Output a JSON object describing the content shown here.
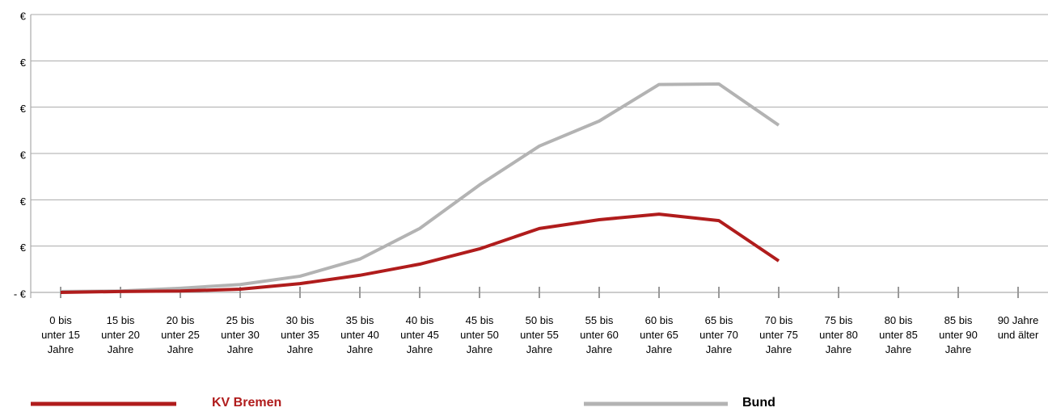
{
  "chart_data": {
    "type": "line",
    "categories": [
      "0 bis unter 15 Jahre",
      "15 bis unter 20 Jahre",
      "20 bis unter 25 Jahre",
      "25 bis unter 30 Jahre",
      "30 bis unter 35 Jahre",
      "35 bis unter 40 Jahre",
      "40 bis unter 45 Jahre",
      "45 bis unter 50 Jahre",
      "50 bis unter 55 Jahre",
      "55 bis unter 60 Jahre",
      "60 bis unter 65 Jahre",
      "65 bis unter 70 Jahre",
      "70 bis unter 75 Jahre",
      "75 bis unter 80 Jahre",
      "80 bis unter 85 Jahre",
      "85 bis unter 90 Jahre",
      "90 Jahre und älter"
    ],
    "series": [
      {
        "name": "KV Bremen",
        "color": "#b01c1c",
        "values": [
          0.0,
          0.02,
          0.03,
          0.07,
          0.19,
          0.37,
          0.61,
          0.94,
          1.38,
          1.57,
          1.69,
          1.55,
          0.68,
          null,
          null,
          null,
          null
        ]
      },
      {
        "name": "Bund",
        "color": "#b3b3b3",
        "values": [
          0.02,
          0.03,
          0.09,
          0.17,
          0.35,
          0.72,
          1.38,
          2.32,
          3.16,
          3.7,
          4.49,
          4.5,
          3.61,
          null,
          null,
          null,
          null
        ]
      }
    ],
    "ylim": [
      0,
      6
    ],
    "yticks": [
      {
        "value": 0,
        "label": "- €"
      },
      {
        "value": 1,
        "label": "€"
      },
      {
        "value": 2,
        "label": "€"
      },
      {
        "value": 3,
        "label": "€"
      },
      {
        "value": 4,
        "label": "€"
      },
      {
        "value": 5,
        "label": "€"
      },
      {
        "value": 6,
        "label": "€"
      }
    ],
    "grid": true
  }
}
